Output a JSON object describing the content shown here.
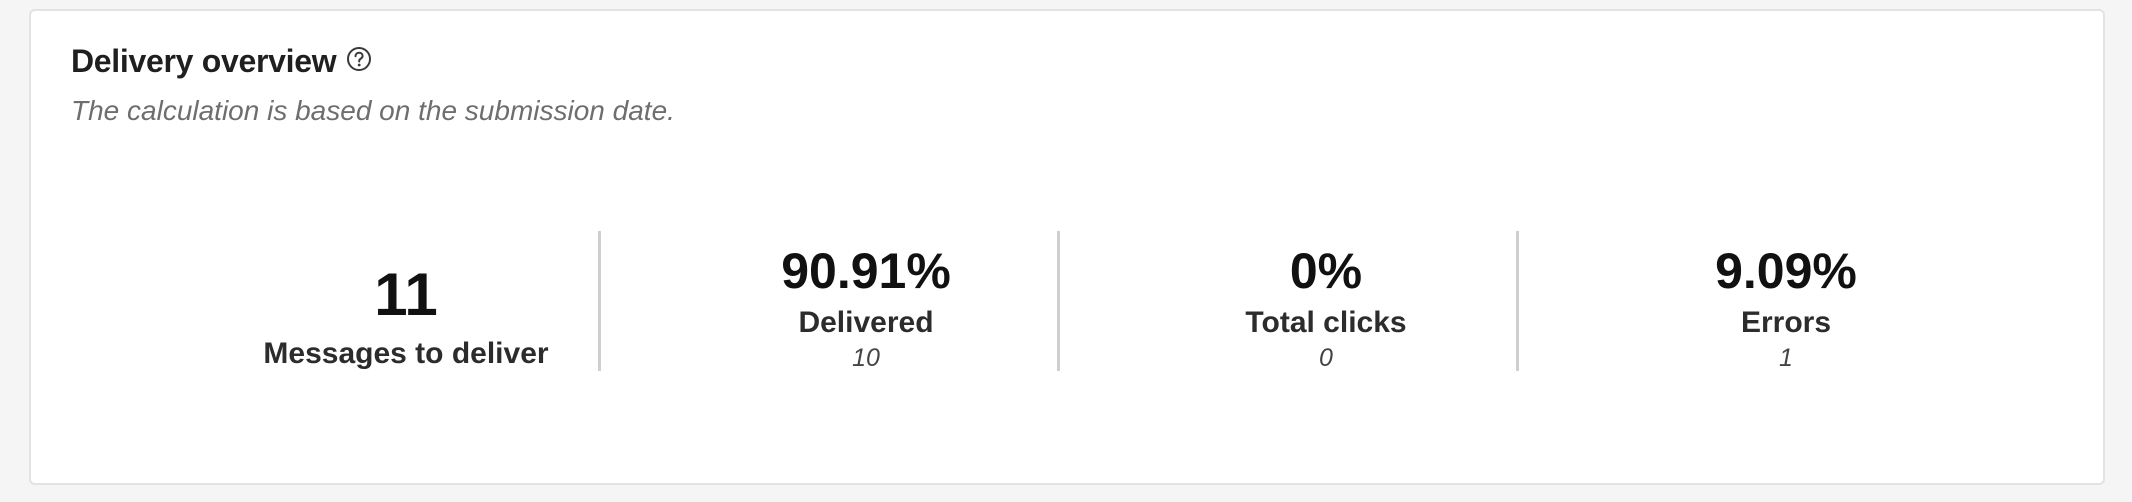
{
  "header": {
    "title": "Delivery overview",
    "help_icon": "help-circle-icon",
    "subtitle": "The calculation is based on the submission date."
  },
  "metrics": [
    {
      "value": "11",
      "label": "Messages to deliver",
      "count": ""
    },
    {
      "value": "90.91%",
      "label": "Delivered",
      "count": "10"
    },
    {
      "value": "0%",
      "label": "Total clicks",
      "count": "0"
    },
    {
      "value": "9.09%",
      "label": "Errors",
      "count": "1"
    }
  ],
  "colors": {
    "background": "#f5f5f5",
    "card": "#ffffff",
    "divider": "#cfcfcf",
    "subtitle": "#6e6e6e"
  }
}
